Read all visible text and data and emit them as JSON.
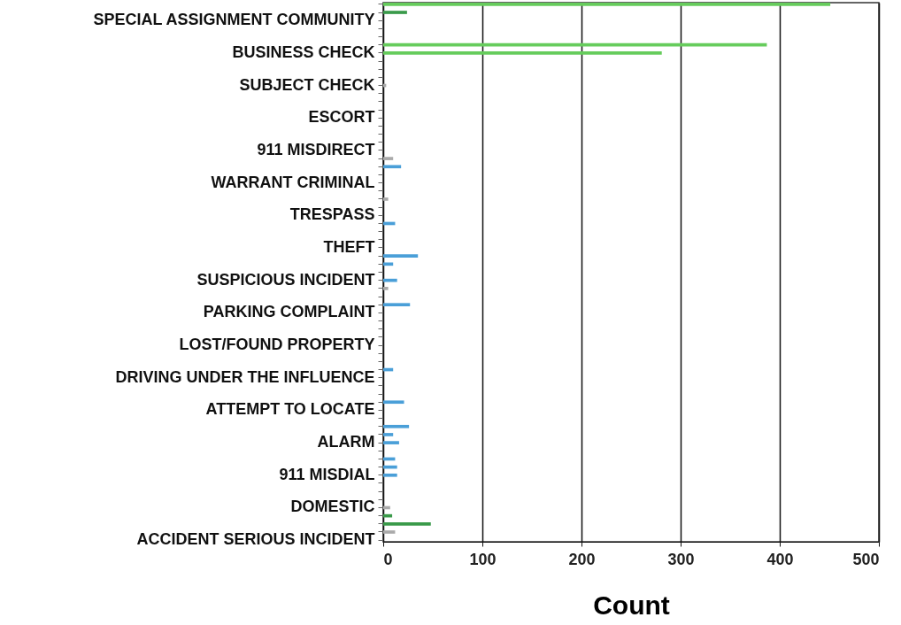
{
  "chart_data": {
    "type": "bar",
    "orientation": "horizontal",
    "xlabel": "Count",
    "categories": [
      null,
      null,
      "SPECIAL ASSIGNMENT COMMUNITY",
      null,
      null,
      null,
      "BUSINESS CHECK",
      null,
      null,
      null,
      "SUBJECT CHECK",
      null,
      null,
      null,
      "ESCORT",
      null,
      null,
      null,
      "911 MISDIRECT",
      null,
      null,
      null,
      "WARRANT CRIMINAL",
      null,
      null,
      null,
      "TRESPASS",
      null,
      null,
      null,
      "THEFT",
      null,
      null,
      null,
      "SUSPICIOUS INCIDENT",
      null,
      null,
      null,
      "PARKING COMPLAINT",
      null,
      null,
      null,
      "LOST/FOUND PROPERTY",
      null,
      null,
      null,
      "DRIVING UNDER THE INFLUENCE",
      null,
      null,
      null,
      "ATTEMPT TO LOCATE",
      null,
      null,
      null,
      "ALARM",
      null,
      null,
      null,
      "911 MISDIAL",
      null,
      null,
      null,
      "DOMESTIC",
      null,
      null,
      null,
      "ACCIDENT SERIOUS INCIDENT"
    ],
    "values": [
      451,
      24,
      null,
      null,
      null,
      387,
      281,
      null,
      null,
      null,
      3,
      null,
      null,
      null,
      null,
      null,
      null,
      null,
      null,
      10,
      18,
      null,
      null,
      null,
      5,
      null,
      null,
      12,
      null,
      null,
      null,
      35,
      10,
      null,
      14,
      5,
      null,
      27,
      null,
      null,
      null,
      null,
      null,
      null,
      null,
      10,
      null,
      null,
      null,
      21,
      null,
      null,
      26,
      10,
      16,
      null,
      12,
      14,
      14,
      null,
      null,
      null,
      7,
      9,
      48,
      12,
      null
    ],
    "colors": [
      "#66cc5c",
      "#3a9a4a",
      "#66cc5c",
      "#66cc5c",
      "#66cc5c",
      "#66cc5c",
      "#66cc5c",
      "#aaaaaa",
      "#aaaaaa",
      "#aaaaaa",
      "#aaaaaa",
      "#aaaaaa",
      "#aaaaaa",
      "#aaaaaa",
      "#aaaaaa",
      "#aaaaaa",
      "#aaaaaa",
      "#aaaaaa",
      "#aaaaaa",
      "#aaaaaa",
      "#4a9fd8",
      "#aaaaaa",
      "#aaaaaa",
      "#aaaaaa",
      "#aaaaaa",
      "#aaaaaa",
      "#aaaaaa",
      "#4a9fd8",
      "#aaaaaa",
      "#aaaaaa",
      "#aaaaaa",
      "#4a9fd8",
      "#4a9fd8",
      "#aaaaaa",
      "#4a9fd8",
      "#aaaaaa",
      "#aaaaaa",
      "#4a9fd8",
      "#aaaaaa",
      "#aaaaaa",
      "#aaaaaa",
      "#aaaaaa",
      "#aaaaaa",
      "#aaaaaa",
      "#aaaaaa",
      "#4a9fd8",
      "#aaaaaa",
      "#aaaaaa",
      "#aaaaaa",
      "#4a9fd8",
      "#aaaaaa",
      "#aaaaaa",
      "#4a9fd8",
      "#4a9fd8",
      "#4a9fd8",
      "#aaaaaa",
      "#4a9fd8",
      "#4a9fd8",
      "#4a9fd8",
      "#aaaaaa",
      "#aaaaaa",
      "#aaaaaa",
      "#aaaaaa",
      "#3a9a4a",
      "#3a9a4a",
      "#aaaaaa",
      "#aaaaaa"
    ],
    "xlim": [
      0,
      500
    ],
    "xticks": [
      0,
      100,
      200,
      300,
      400,
      500
    ],
    "grid": "x"
  }
}
